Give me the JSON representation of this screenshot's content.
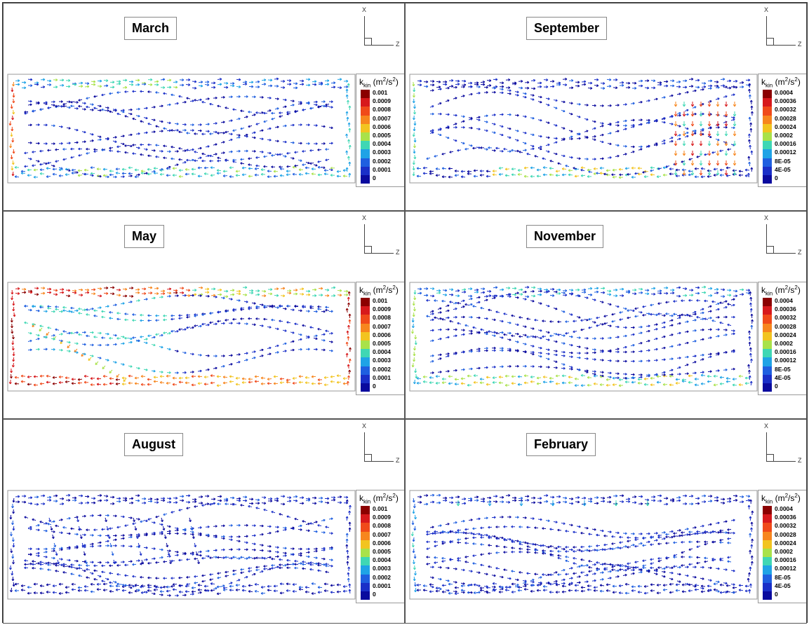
{
  "panels": [
    {
      "title": "March",
      "scale": "A",
      "pattern": "march"
    },
    {
      "title": "September",
      "scale": "B",
      "pattern": "september"
    },
    {
      "title": "May",
      "scale": "A",
      "pattern": "may"
    },
    {
      "title": "November",
      "scale": "B",
      "pattern": "november"
    },
    {
      "title": "August",
      "scale": "A",
      "pattern": "august"
    },
    {
      "title": "February",
      "scale": "B",
      "pattern": "february"
    }
  ],
  "axis_labels": {
    "x": "X",
    "z": "Z"
  },
  "legend_title": {
    "main": "k",
    "sub": "kin",
    "unit_open": " (m",
    "sup": "2",
    "unit_mid": "/s",
    "sup2": "2",
    "unit_close": ")"
  },
  "legend_scales": {
    "A": [
      "0.001",
      "0.0009",
      "0.0008",
      "0.0007",
      "0.0006",
      "0.0005",
      "0.0004",
      "0.0003",
      "0.0002",
      "0.0001",
      "0"
    ],
    "B": [
      "0.0004",
      "0.00036",
      "0.00032",
      "0.00028",
      "0.00024",
      "0.0002",
      "0.00016",
      "0.00012",
      "8E-05",
      "4E-05",
      "0"
    ]
  },
  "colormap": [
    "#8b0000",
    "#d7191c",
    "#f04a1a",
    "#f7861e",
    "#f2c420",
    "#a9e24a",
    "#3fd7b4",
    "#1fa3e6",
    "#1f5fe0",
    "#1a2fc8",
    "#0a0a9e"
  ]
}
